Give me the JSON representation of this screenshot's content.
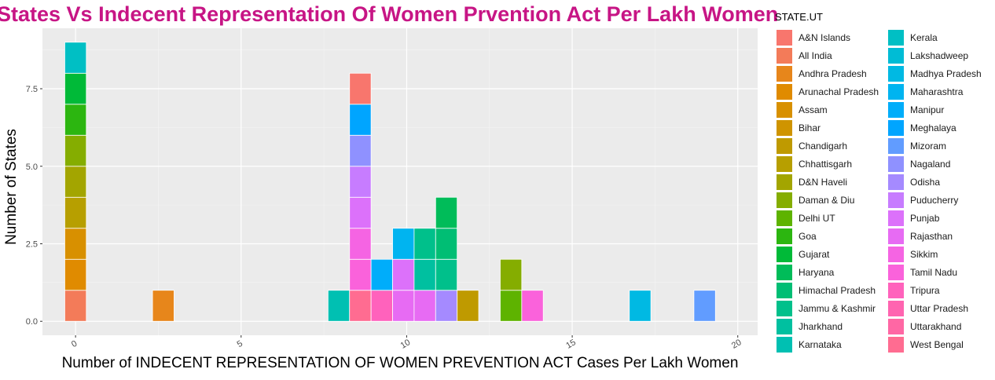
{
  "chart_data": {
    "type": "bar",
    "title": "States Vs Indecent Representation Of Women Prvention Act Per Lakh Women",
    "xlabel": "Number of INDECENT REPRESENTATION OF WOMEN PREVENTION ACT Cases Per Lakh Women",
    "ylabel": "Number of States",
    "xlim": [
      -1.0,
      20.6
    ],
    "ylim": [
      -0.45,
      9.45
    ],
    "x_ticks": [
      0,
      5,
      10,
      15,
      20
    ],
    "x_tick_labels": [
      "0",
      "5",
      "10",
      "15",
      "20"
    ],
    "y_ticks": [
      0.0,
      2.5,
      5.0,
      7.5
    ],
    "y_tick_labels": [
      "0.0",
      "2.5",
      "5.0",
      "7.5"
    ],
    "bin_width": 0.65,
    "grid": true,
    "legend": {
      "title": "STATE.UT",
      "position": "right",
      "entries": [
        {
          "label": "A&N Islands",
          "color": "#F8766D"
        },
        {
          "label": "All India",
          "color": "#F37B59"
        },
        {
          "label": "Andhra Pradesh",
          "color": "#E7861B"
        },
        {
          "label": "Arunachal Pradesh",
          "color": "#E08B00"
        },
        {
          "label": "Assam",
          "color": "#D89000"
        },
        {
          "label": "Bihar",
          "color": "#CF9400"
        },
        {
          "label": "Chandigarh",
          "color": "#BF9A00"
        },
        {
          "label": "Chhattisgarh",
          "color": "#B79F00"
        },
        {
          "label": "D&N Haveli",
          "color": "#A3A500"
        },
        {
          "label": "Daman & Diu",
          "color": "#85AD00"
        },
        {
          "label": "Delhi UT",
          "color": "#5EB300"
        },
        {
          "label": "Goa",
          "color": "#2CB610"
        },
        {
          "label": "Gujarat",
          "color": "#00BA38"
        },
        {
          "label": "Haryana",
          "color": "#00BC59"
        },
        {
          "label": "Himachal Pradesh",
          "color": "#00BE74"
        },
        {
          "label": "Jammu & Kashmir",
          "color": "#00C08B"
        },
        {
          "label": "Jharkhand",
          "color": "#00C0A0"
        },
        {
          "label": "Karnataka",
          "color": "#00C0B2"
        },
        {
          "label": "Kerala",
          "color": "#00BFC4"
        },
        {
          "label": "Lakshadweep",
          "color": "#00BCD5"
        },
        {
          "label": "Madhya Pradesh",
          "color": "#00B9E3"
        },
        {
          "label": "Maharashtra",
          "color": "#00B4F0"
        },
        {
          "label": "Manipur",
          "color": "#00ADFA"
        },
        {
          "label": "Meghalaya",
          "color": "#00A5FF"
        },
        {
          "label": "Mizoram",
          "color": "#619CFF"
        },
        {
          "label": "Nagaland",
          "color": "#8F91FF"
        },
        {
          "label": "Odisha",
          "color": "#A58AFF"
        },
        {
          "label": "Puducherry",
          "color": "#C77CFF"
        },
        {
          "label": "Punjab",
          "color": "#DC71FA"
        },
        {
          "label": "Rajasthan",
          "color": "#E76BF3"
        },
        {
          "label": "Sikkim",
          "color": "#F564E3"
        },
        {
          "label": "Tamil Nadu",
          "color": "#FA62DB"
        },
        {
          "label": "Tripura",
          "color": "#FF62BC"
        },
        {
          "label": "Uttar Pradesh",
          "color": "#FF64B0"
        },
        {
          "label": "Uttarakhand",
          "color": "#FF67A4"
        },
        {
          "label": "West Bengal",
          "color": "#FF6C91"
        }
      ]
    },
    "bars": [
      {
        "x": 0.0,
        "stack": [
          "All India",
          "Arunachal Pradesh",
          "Assam",
          "Chhattisgarh",
          "D&N Haveli",
          "Daman & Diu",
          "Goa",
          "Gujarat",
          "Kerala"
        ]
      },
      {
        "x": 2.65,
        "stack": [
          "Andhra Pradesh"
        ]
      },
      {
        "x": 7.95,
        "stack": [
          "Karnataka"
        ]
      },
      {
        "x": 8.6,
        "stack": [
          "West Bengal",
          "Tamil Nadu",
          "Sikkim",
          "Punjab",
          "Puducherry",
          "Nagaland",
          "Meghalaya",
          "A&N Islands"
        ]
      },
      {
        "x": 9.25,
        "stack": [
          "Tripura",
          "Manipur"
        ]
      },
      {
        "x": 9.9,
        "stack": [
          "Rajasthan",
          "Punjab",
          "Maharashtra"
        ]
      },
      {
        "x": 10.55,
        "stack": [
          "Rajasthan",
          "Jharkhand",
          "Jammu & Kashmir"
        ]
      },
      {
        "x": 11.2,
        "stack": [
          "Odisha",
          "Jammu & Kashmir",
          "Himachal Pradesh",
          "Haryana"
        ]
      },
      {
        "x": 11.85,
        "stack": [
          "Chandigarh"
        ]
      },
      {
        "x": 13.15,
        "stack": [
          "Delhi UT",
          "Daman & Diu"
        ]
      },
      {
        "x": 13.8,
        "stack": [
          "Tamil Nadu"
        ]
      },
      {
        "x": 17.05,
        "stack": [
          "Madhya Pradesh"
        ]
      },
      {
        "x": 19.0,
        "stack": [
          "Mizoram"
        ]
      }
    ]
  }
}
